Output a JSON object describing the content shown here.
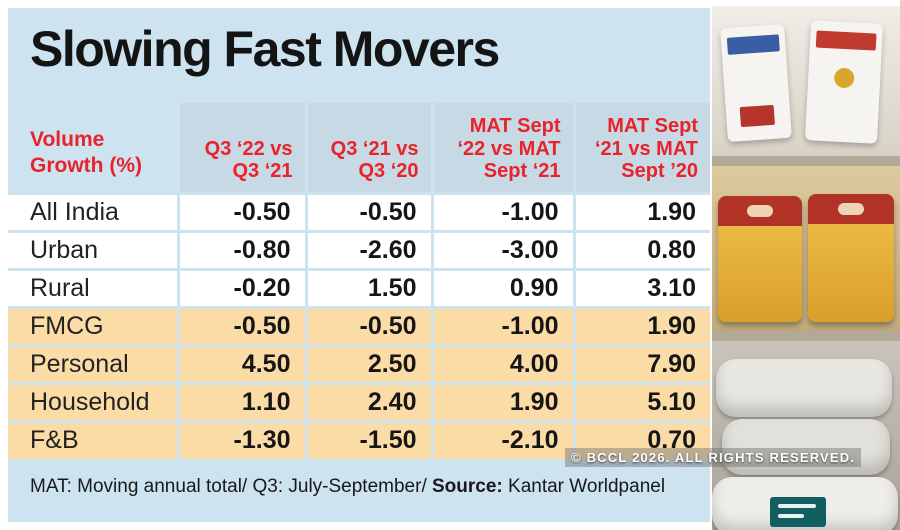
{
  "title": "Slowing Fast Movers",
  "table": {
    "corner_header": "Volume\nGrowth (%)",
    "columns": [
      "Q3 ‘22 vs\nQ3 ‘21",
      "Q3 ‘21 vs\nQ3 ‘20",
      "MAT Sept\n‘22 vs MAT\nSept ‘21",
      "MAT Sept\n‘21 vs MAT\nSept ’20"
    ],
    "rows": [
      {
        "label": "All India",
        "values": [
          "-0.50",
          "-0.50",
          "-1.00",
          "1.90"
        ],
        "highlight": false
      },
      {
        "label": "Urban",
        "values": [
          "-0.80",
          "-2.60",
          "-3.00",
          "0.80"
        ],
        "highlight": false
      },
      {
        "label": "Rural",
        "values": [
          "-0.20",
          "1.50",
          "0.90",
          "3.10"
        ],
        "highlight": false
      },
      {
        "label": "FMCG",
        "values": [
          "-0.50",
          "-0.50",
          "-1.00",
          "1.90"
        ],
        "highlight": true
      },
      {
        "label": "Personal",
        "values": [
          "4.50",
          "2.50",
          "4.00",
          "7.90"
        ],
        "highlight": true
      },
      {
        "label": "Household",
        "values": [
          "1.10",
          "2.40",
          "1.90",
          "5.10"
        ],
        "highlight": true
      },
      {
        "label": "F&B",
        "values": [
          "-1.30",
          "-1.50",
          "-2.10",
          "0.70"
        ],
        "highlight": true
      }
    ]
  },
  "footnote": {
    "text": "MAT: Moving annual total/ Q3: July-September/",
    "source_label": "Source:",
    "source_value": "Kantar Worldpanel"
  },
  "watermark": "© BCCL 2026. ALL RIGHTS RESERVED.",
  "colors": {
    "panel_bg": "#cde3ef",
    "header_band": "#c7d9e4",
    "header_text": "#e8232b",
    "highlight_row": "#fbdca7",
    "row_bg": "#ffffff",
    "body_text": "#161616"
  },
  "chart_data": {
    "type": "table",
    "title": "Slowing Fast Movers",
    "unit": "Volume Growth (%)",
    "columns": [
      "Q3 ‘22 vs Q3 ‘21",
      "Q3 ‘21 vs Q3 ‘20",
      "MAT Sept ‘22 vs MAT Sept ‘21",
      "MAT Sept ‘21 vs MAT Sept ’20"
    ],
    "rows": [
      {
        "category": "All India",
        "values": [
          -0.5,
          -0.5,
          -1.0,
          1.9
        ]
      },
      {
        "category": "Urban",
        "values": [
          -0.8,
          -2.6,
          -3.0,
          0.8
        ]
      },
      {
        "category": "Rural",
        "values": [
          -0.2,
          1.5,
          0.9,
          3.1
        ]
      },
      {
        "category": "FMCG",
        "values": [
          -0.5,
          -0.5,
          -1.0,
          1.9
        ]
      },
      {
        "category": "Personal",
        "values": [
          4.5,
          2.5,
          4.0,
          7.9
        ]
      },
      {
        "category": "Household",
        "values": [
          1.1,
          2.4,
          1.9,
          5.1
        ]
      },
      {
        "category": "F&B",
        "values": [
          -1.3,
          -1.5,
          -2.1,
          0.7
        ]
      }
    ],
    "source": "Kantar Worldpanel",
    "notes": "MAT: Moving annual total/ Q3: July-September"
  }
}
